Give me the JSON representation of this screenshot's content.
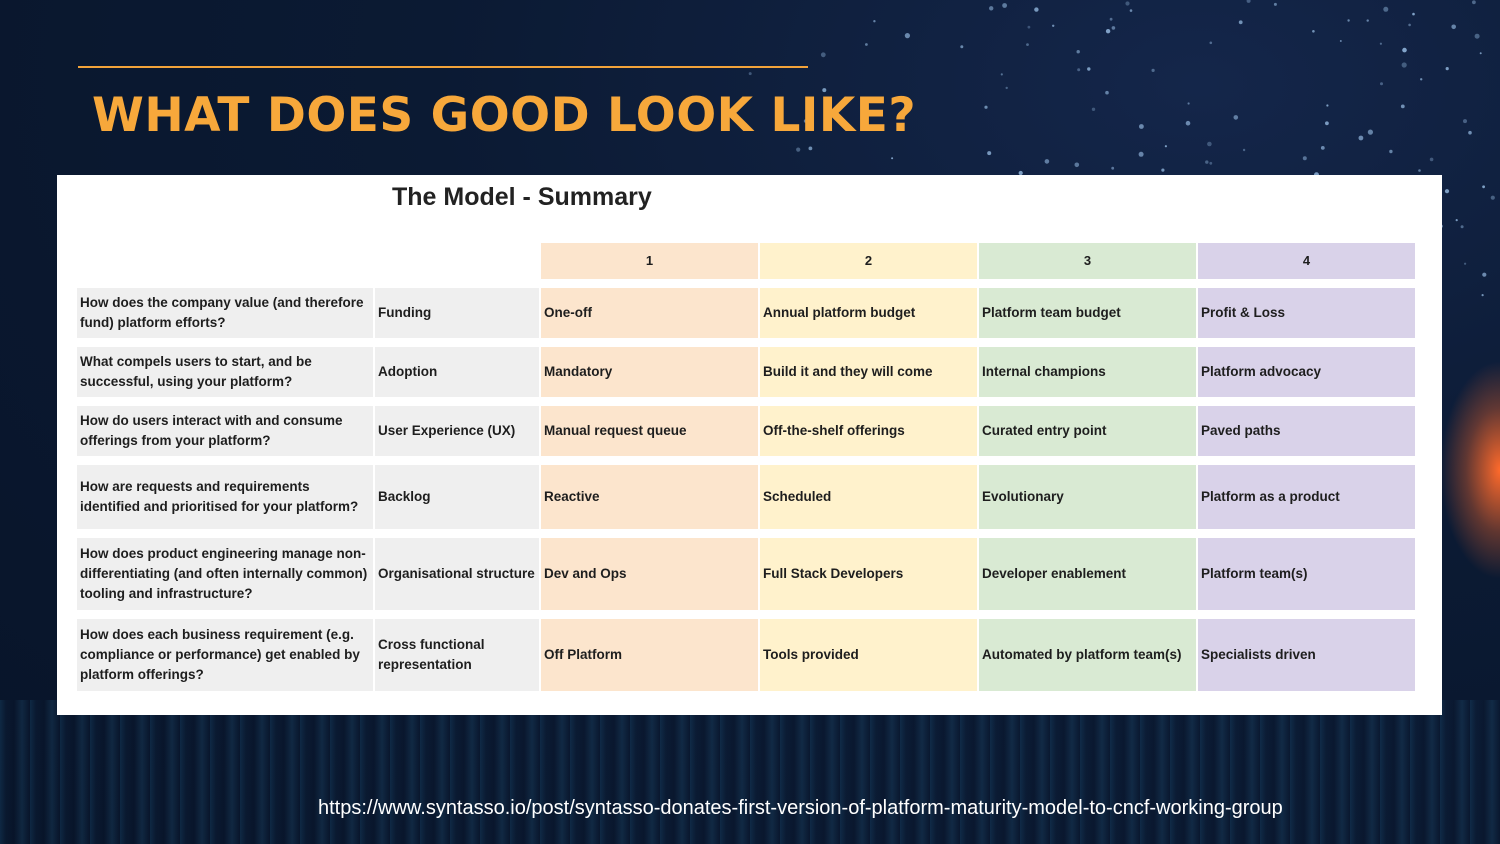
{
  "slide": {
    "title": "WHAT DOES GOOD LOOK LIKE?",
    "source_url": "https://www.syntasso.io/post/syntasso-donates-first-version-of-platform-maturity-model-to-cncf-working-group"
  },
  "model": {
    "title": "The Model - Summary",
    "levels": [
      "1",
      "2",
      "3",
      "4"
    ],
    "rows": [
      {
        "question": "How does the company value (and therefore fund) platform efforts?",
        "aspect": "Funding",
        "levels": [
          "One-off",
          "Annual platform budget",
          "Platform team budget",
          "Profit & Loss"
        ]
      },
      {
        "question": "What compels users to start, and be successful, using your platform?",
        "aspect": "Adoption",
        "levels": [
          "Mandatory",
          "Build it and they will come",
          "Internal champions",
          "Platform advocacy"
        ]
      },
      {
        "question": "How do users interact with and consume offerings from your platform?",
        "aspect": "User Experience (UX)",
        "levels": [
          "Manual request queue",
          "Off-the-shelf offerings",
          "Curated entry point",
          "Paved paths"
        ]
      },
      {
        "question": "How are requests and requirements identified and prioritised for your platform?",
        "aspect": "Backlog",
        "levels": [
          "Reactive",
          "Scheduled",
          "Evolutionary",
          "Platform as a product"
        ]
      },
      {
        "question": "How does product engineering manage non-differentiating (and often internally common) tooling and infrastructure?",
        "aspect": "Organisational structure",
        "levels": [
          "Dev and Ops",
          "Full Stack Developers",
          "Developer enablement",
          "Platform team(s)"
        ]
      },
      {
        "question": "How does each business requirement (e.g. compliance or performance) get enabled by platform offerings?",
        "aspect": "Cross functional representation",
        "levels": [
          "Off Platform",
          "Tools provided",
          "Automated by platform team(s)",
          "Specialists driven"
        ]
      }
    ]
  },
  "colors": {
    "title": "#f7a83b",
    "level_1": "#fce5cd",
    "level_2": "#fff2cc",
    "level_3": "#d9ead3",
    "level_4": "#d9d2e9",
    "question_cell": "#efefef"
  }
}
